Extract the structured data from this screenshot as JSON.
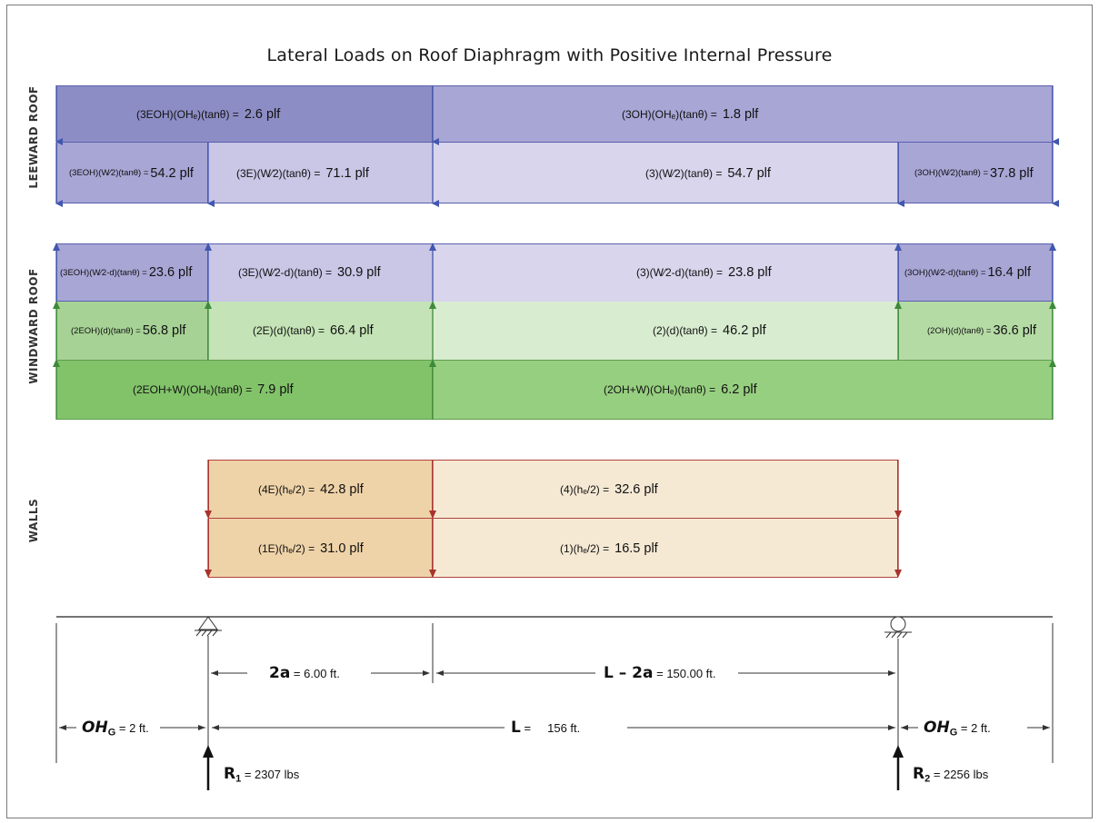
{
  "title": "Lateral Loads on Roof Diaphragm with Positive Internal Pressure",
  "section_labels": {
    "leeward": "LEEWARD ROOF",
    "windward": "WINDWARD ROOF",
    "walls": "WALLS"
  },
  "colors": {
    "leeward_dark": "#8d8dc6",
    "leeward_mid": "#a8a6d5",
    "leeward_light": "#d5d2ea",
    "windward_green_dark": "#8fc878",
    "windward_green_mid": "#bfe0b0",
    "windward_green_light": "#d8ecd0",
    "wall_dark": "#efd3a8",
    "wall_light": "#f6e9d4",
    "arrow_blue": "#4257ae",
    "arrow_green": "#3e8a3a",
    "arrow_red": "#a8322d"
  },
  "leeward": {
    "r1": {
      "a": {
        "formula": "(3EOH)(OHₑ)(tanθ) =",
        "value": "2.6 plf"
      },
      "b": {
        "formula": "(3OH)(OHₑ)(tanθ) =",
        "value": "1.8 plf"
      }
    },
    "r2": {
      "a": {
        "formula": "(3EOH)(W⁄2)(tanθ) =",
        "value": "54.2 plf"
      },
      "b": {
        "formula": "(3E)(W⁄2)(tanθ) =",
        "value": "71.1 plf"
      },
      "c": {
        "formula": "(3)(W⁄2)(tanθ) =",
        "value": "54.7 plf"
      },
      "d": {
        "formula": "(3OH)(W⁄2)(tanθ) =",
        "value": "37.8 plf"
      }
    }
  },
  "windward": {
    "r1": {
      "a": {
        "formula": "(3EOH)(W⁄2-d)(tanθ) =",
        "value": "23.6 plf"
      },
      "b": {
        "formula": "(3E)(W⁄2-d)(tanθ) =",
        "value": "30.9 plf"
      },
      "c": {
        "formula": "(3)(W⁄2-d)(tanθ) =",
        "value": "23.8 plf"
      },
      "d": {
        "formula": "(3OH)(W⁄2-d)(tanθ) =",
        "value": "16.4 plf"
      }
    },
    "r2": {
      "a": {
        "formula": "(2EOH)(d)(tanθ) =",
        "value": "56.8 plf"
      },
      "b": {
        "formula": "(2E)(d)(tanθ) =",
        "value": "66.4 plf"
      },
      "c": {
        "formula": "(2)(d)(tanθ) =",
        "value": "46.2 plf"
      },
      "d": {
        "formula": "(2OH)(d)(tanθ) =",
        "value": "36.6 plf"
      }
    },
    "r3": {
      "a": {
        "formula": "(2EOH+W)(OHₑ)(tanθ) =",
        "value": "7.9 plf"
      },
      "b": {
        "formula": "(2OH+W)(OHₑ)(tanθ) =",
        "value": "6.2 plf"
      }
    }
  },
  "walls": {
    "r1": {
      "a": {
        "formula": "(4E)(hₑ/2) =",
        "value": "42.8 plf"
      },
      "b": {
        "formula": "(4)(hₑ/2) =",
        "value": "32.6 plf"
      }
    },
    "r2": {
      "a": {
        "formula": "(1E)(hₑ/2) =",
        "value": "31.0 plf"
      },
      "b": {
        "formula": "(1)(hₑ/2) =",
        "value": "16.5 plf"
      }
    }
  },
  "dims": {
    "two_a": {
      "label": "2a",
      "value": "6.00 ft."
    },
    "l_minus_2a": {
      "label": "L – 2a",
      "value": "150.00 ft."
    },
    "oh_left": {
      "label": "OH",
      "sub": "G",
      "value": "2 ft."
    },
    "l": {
      "label": "L",
      "value": "156 ft."
    },
    "oh_right": {
      "label": "OH",
      "sub": "G",
      "value": "2 ft."
    },
    "r1": {
      "label": "R",
      "sub": "1",
      "value": "2307 lbs"
    },
    "r2": {
      "label": "R",
      "sub": "2",
      "value": "2256 lbs"
    }
  }
}
